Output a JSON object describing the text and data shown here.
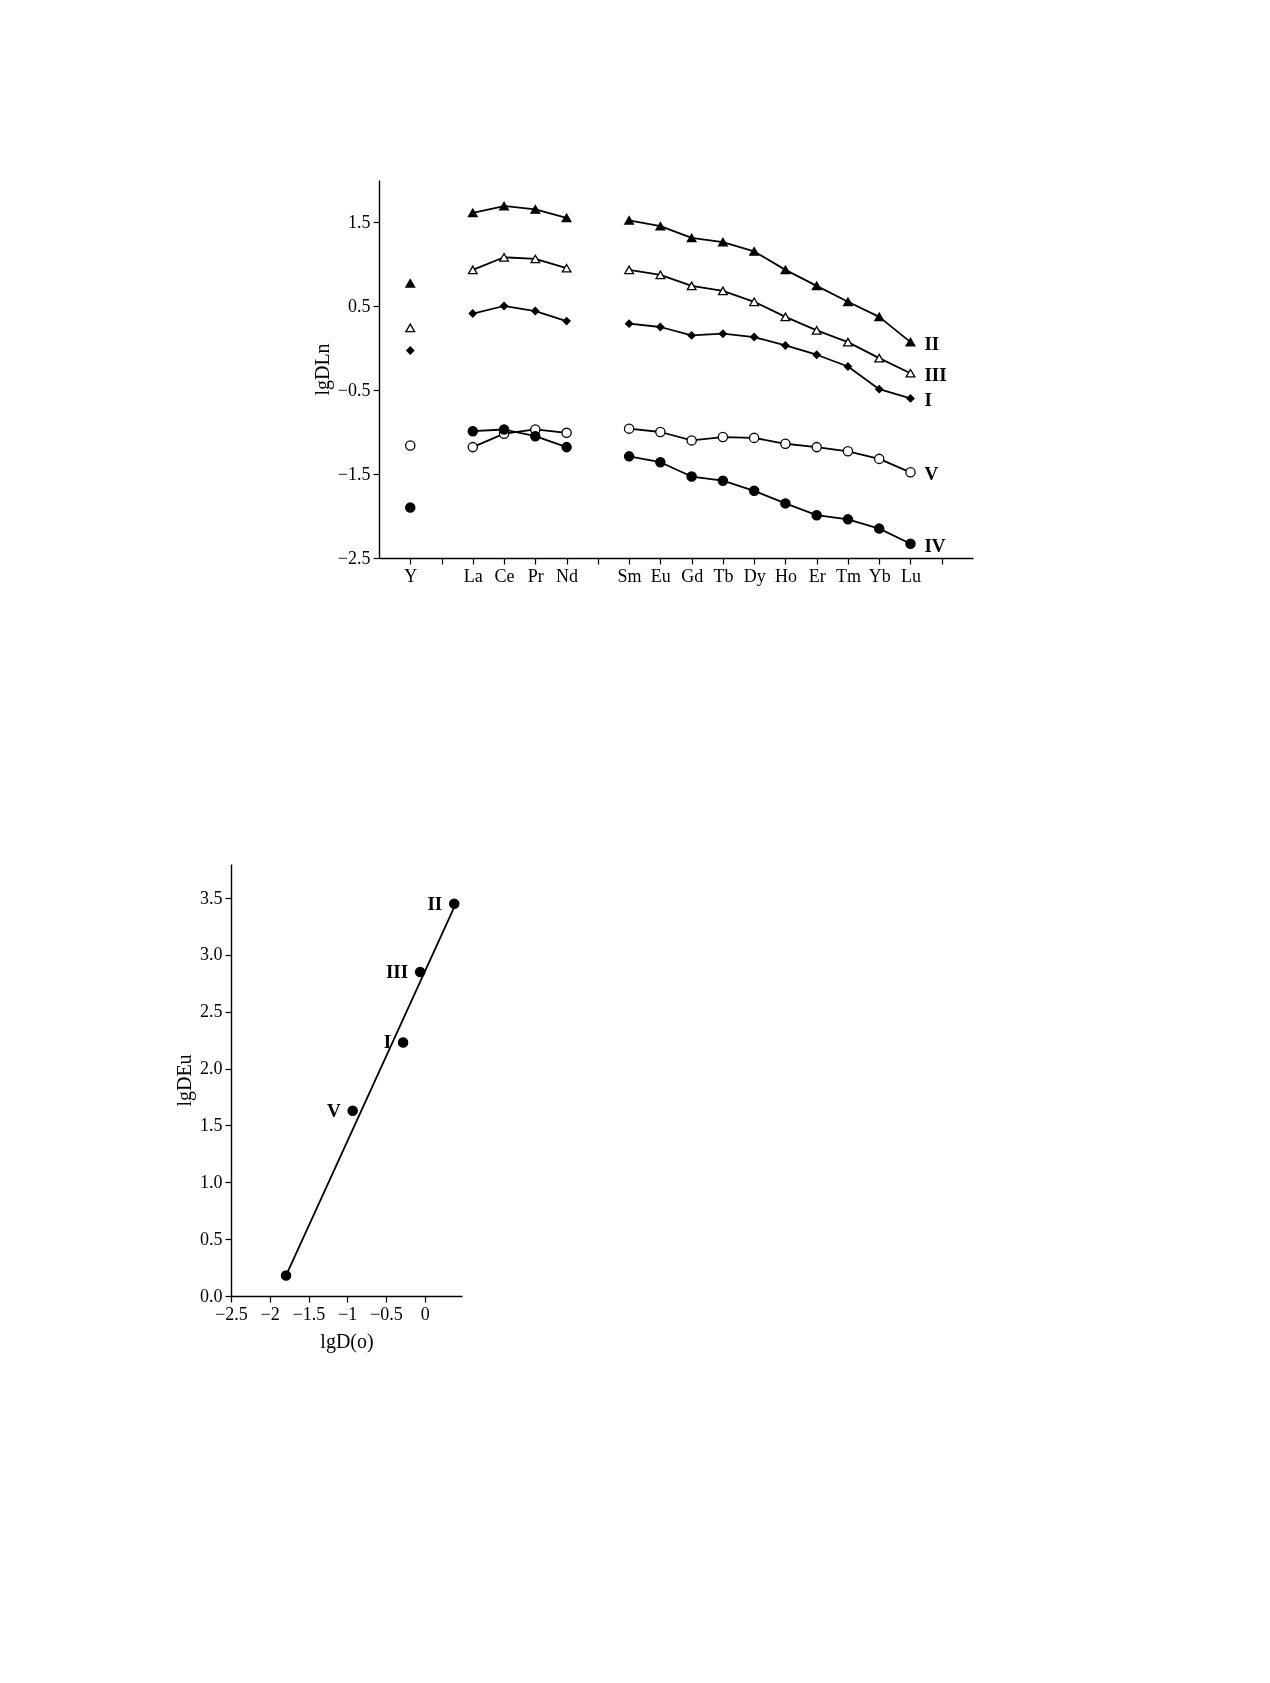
{
  "chart_data": [
    {
      "type": "line",
      "ylabel": "lgDLn",
      "categories": [
        "Y",
        null,
        "La",
        "Ce",
        "Pr",
        "Nd",
        null,
        "Sm",
        "Eu",
        "Gd",
        "Tb",
        "Dy",
        "Ho",
        "Er",
        "Tm",
        "Yb",
        "Lu",
        null
      ],
      "ylim": [
        -2.5,
        2.0
      ],
      "yticks": [
        1.5,
        0.5,
        {
          "value": -0.5,
          "label": "−0.5"
        },
        {
          "value": -1.5,
          "label": "−1.5"
        },
        {
          "value": -2.5,
          "label": "−2.5"
        }
      ],
      "series": [
        {
          "name": "II",
          "color": "#000000",
          "marker": "triangle",
          "values": [
            0.77,
            null,
            1.61,
            1.69,
            1.65,
            1.55,
            null,
            1.52,
            1.45,
            1.31,
            1.26,
            1.15,
            0.93,
            0.74,
            0.55,
            0.37,
            0.07,
            null
          ]
        },
        {
          "name": "III",
          "color": "#000000",
          "marker": "triangle",
          "colors": [
            "#ffffff",
            null,
            "#ffffff",
            "#ffffff",
            "#ffffff",
            "#ffffff",
            null,
            "#ffffff",
            "#ffffff",
            "#ffffff",
            "#ffffff",
            "#ffffff",
            "#ffffff",
            "#ffffff",
            "#ffffff",
            "#ffffff",
            "#ffffff",
            null
          ],
          "values": [
            0.24,
            null,
            0.93,
            1.08,
            1.06,
            0.95,
            null,
            0.93,
            0.87,
            0.74,
            0.68,
            0.55,
            0.37,
            0.21,
            0.07,
            -0.12,
            -0.3,
            null
          ]
        },
        {
          "name": "I",
          "color": "#000000",
          "marker": "diamond",
          "values": [
            -0.03,
            null,
            0.41,
            0.5,
            0.44,
            0.32,
            null,
            0.29,
            0.25,
            0.15,
            0.17,
            0.13,
            0.03,
            -0.08,
            -0.22,
            -0.49,
            -0.6,
            null
          ]
        },
        {
          "name": "V",
          "color": "#000000",
          "marker": "circle",
          "colors": [
            "#ffffff",
            null,
            "#ffffff",
            "#ffffff",
            "#ffffff",
            "#ffffff",
            null,
            "#ffffff",
            "#ffffff",
            "#ffffff",
            "#ffffff",
            "#ffffff",
            "#ffffff",
            "#ffffff",
            "#ffffff",
            "#ffffff",
            "#ffffff",
            null
          ],
          "values": [
            -1.16,
            null,
            -1.18,
            -1.02,
            -0.97,
            -1.01,
            null,
            -0.96,
            -1.0,
            -1.1,
            -1.06,
            -1.07,
            -1.14,
            -1.18,
            -1.23,
            -1.32,
            -1.48,
            null
          ]
        },
        {
          "name": "IV",
          "color": "#000000",
          "marker": "circle",
          "values": [
            -1.9,
            null,
            -0.99,
            -0.97,
            -1.05,
            -1.18,
            null,
            -1.29,
            -1.36,
            -1.53,
            -1.58,
            -1.7,
            -1.85,
            -1.99,
            -2.04,
            -2.15,
            -2.33,
            null
          ]
        }
      ]
    },
    {
      "type": "scatter",
      "xlabel": "lgD(o)",
      "ylabel": "lgDEu",
      "marker": "circle",
      "xlim": [
        -2.5,
        0.48
      ],
      "xticks": [
        {
          "value": -2.5,
          "label": "−2.5"
        },
        {
          "value": -2,
          "label": "−2"
        },
        {
          "value": -1.5,
          "label": "−1.5"
        },
        {
          "value": -1,
          "label": "−1"
        },
        {
          "value": -0.5,
          "label": "−0.5"
        },
        0
      ],
      "ylim": [
        0,
        3.8
      ],
      "yticks": [
        {
          "value": 0,
          "label": "0.0"
        },
        0.5,
        {
          "value": 1,
          "label": "1.0"
        },
        1.5,
        {
          "value": 2,
          "label": "2.0"
        },
        2.5,
        {
          "value": 3,
          "label": "3.0"
        },
        3.5
      ],
      "series": [
        {
          "color": "#000000",
          "x": [
            -1.79,
            -0.93,
            -0.28,
            -0.06,
            0.38
          ],
          "values": [
            0.18,
            1.63,
            2.23,
            2.85,
            3.45
          ]
        },
        {
          "type": "line",
          "marker": "none",
          "color": "#000000",
          "x": [
            -1.79,
            0.38
          ],
          "values": [
            0.18,
            3.42
          ]
        }
      ],
      "annotations": [
        {
          "text": "II",
          "x": 0.38,
          "y": 3.45
        },
        {
          "text": "III",
          "x": -0.06,
          "y": 2.85
        },
        {
          "text": "I",
          "x": -0.28,
          "y": 2.23
        },
        {
          "text": "V",
          "x": -0.93,
          "y": 1.63
        }
      ]
    }
  ]
}
